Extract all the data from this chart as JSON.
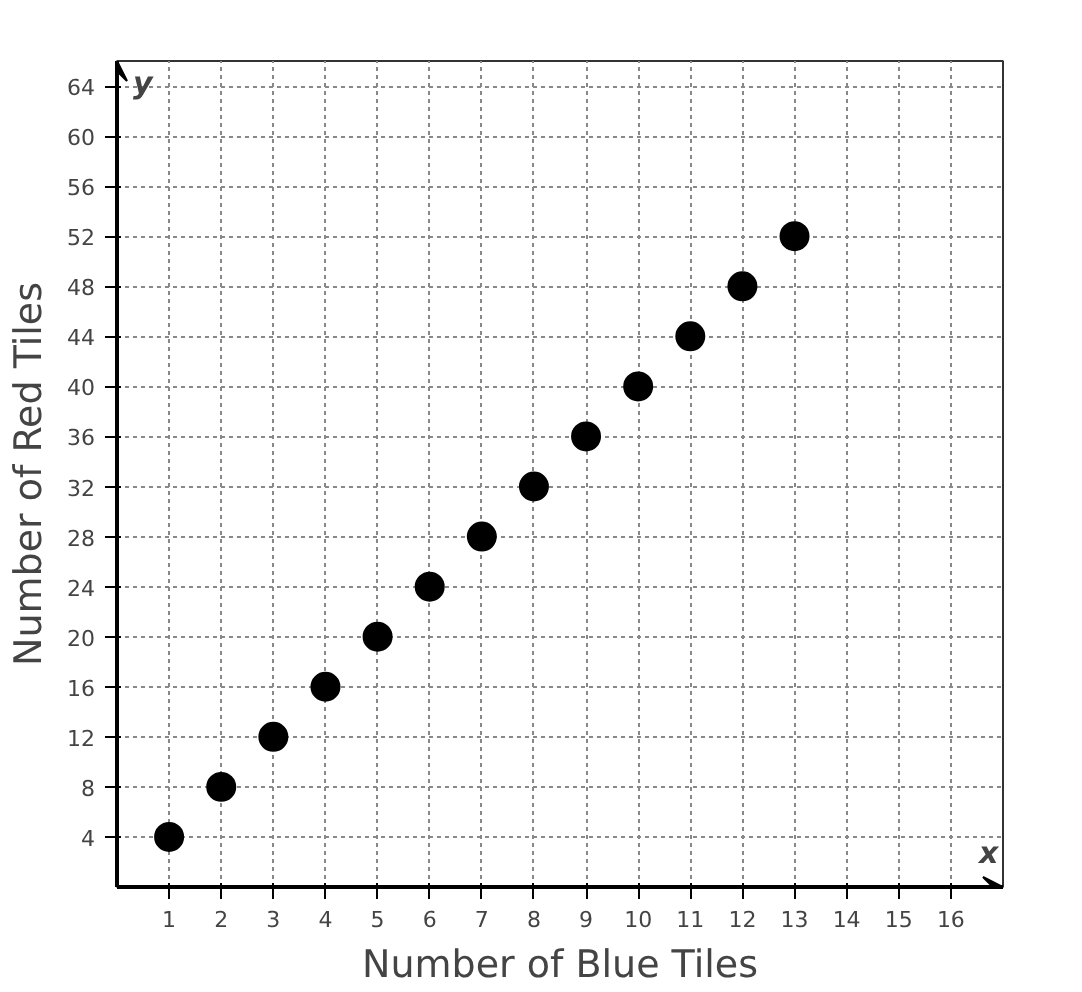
{
  "chart_data": {
    "type": "scatter",
    "xlabel": "Number of Blue Tiles",
    "ylabel": "Number of Red Tiles",
    "annotations": [
      "x",
      "y"
    ],
    "x": [
      1,
      2,
      3,
      4,
      5,
      6,
      7,
      8,
      9,
      10,
      11,
      12,
      13
    ],
    "values": [
      4,
      8,
      12,
      16,
      20,
      24,
      28,
      32,
      36,
      40,
      44,
      48,
      52
    ],
    "color": "#000000",
    "marker": "circle",
    "grid": true,
    "xlim": [
      0,
      17
    ],
    "ylim": [
      0,
      66
    ],
    "xticks": [
      1,
      2,
      3,
      4,
      5,
      6,
      7,
      8,
      9,
      10,
      11,
      12,
      13,
      14,
      15,
      16
    ],
    "yticks": [
      4,
      8,
      12,
      16,
      20,
      24,
      28,
      32,
      36,
      40,
      44,
      48,
      52,
      56,
      60,
      64
    ]
  }
}
